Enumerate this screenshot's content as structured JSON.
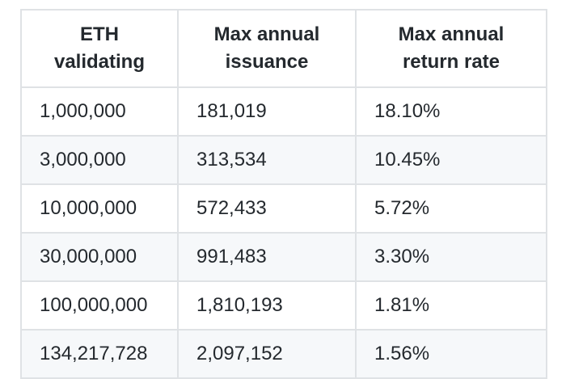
{
  "table": {
    "headers": [
      [
        "ETH",
        "validating"
      ],
      [
        "Max annual",
        "issuance"
      ],
      [
        "Max annual",
        "return rate"
      ]
    ],
    "rows": [
      [
        "1,000,000",
        "181,019",
        "18.10%"
      ],
      [
        "3,000,000",
        "313,534",
        "10.45%"
      ],
      [
        "10,000,000",
        "572,433",
        "5.72%"
      ],
      [
        "30,000,000",
        "991,483",
        "3.30%"
      ],
      [
        "100,000,000",
        "1,810,193",
        "1.81%"
      ],
      [
        "134,217,728",
        "2,097,152",
        "1.56%"
      ]
    ]
  },
  "colors": {
    "border": "#dfe2e5",
    "stripe": "#f6f8fa",
    "text": "#24292e"
  }
}
